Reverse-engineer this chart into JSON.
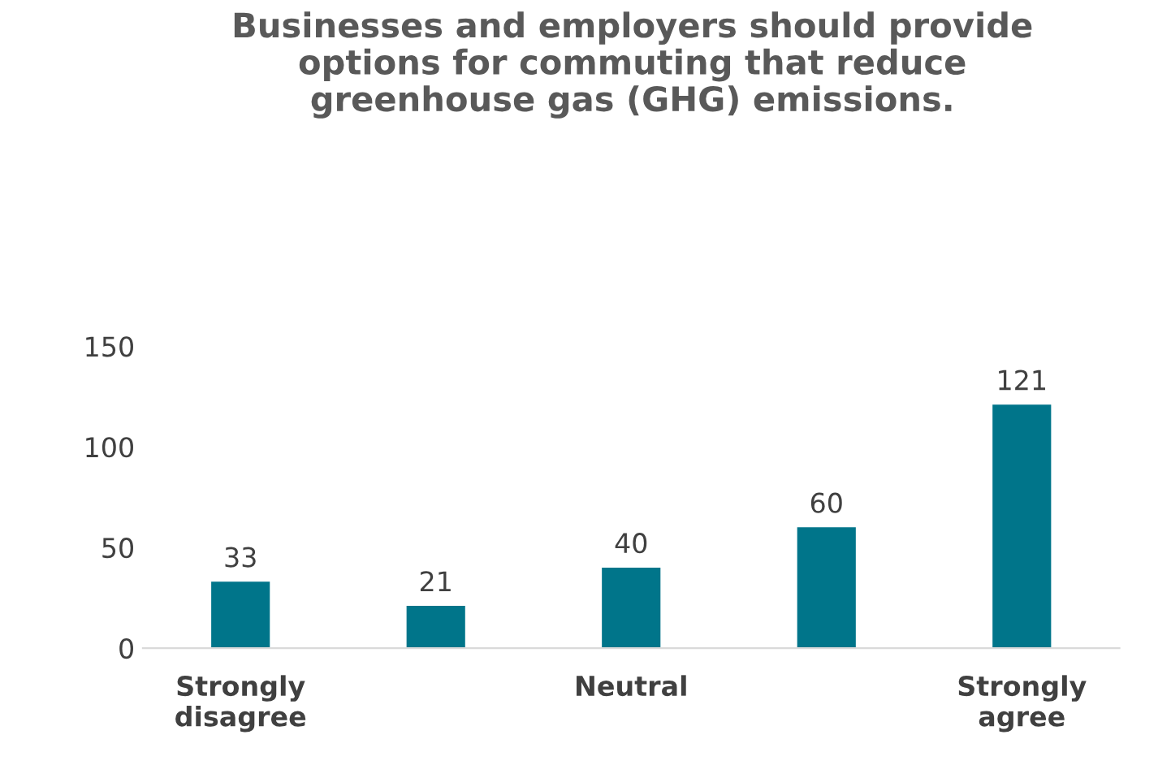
{
  "chart_data": {
    "type": "bar",
    "title": "Businesses and employers should provide options for commuting that reduce greenhouse gas (GHG) emissions.",
    "categories": [
      "Strongly disagree",
      null,
      "Neutral",
      null,
      "Strongly agree"
    ],
    "values": [
      33,
      21,
      40,
      60,
      121
    ],
    "color": "#00758a",
    "ylim": [
      0,
      150
    ],
    "yticks": [
      0,
      50,
      100,
      150
    ],
    "grid": false,
    "data_labels": true
  }
}
